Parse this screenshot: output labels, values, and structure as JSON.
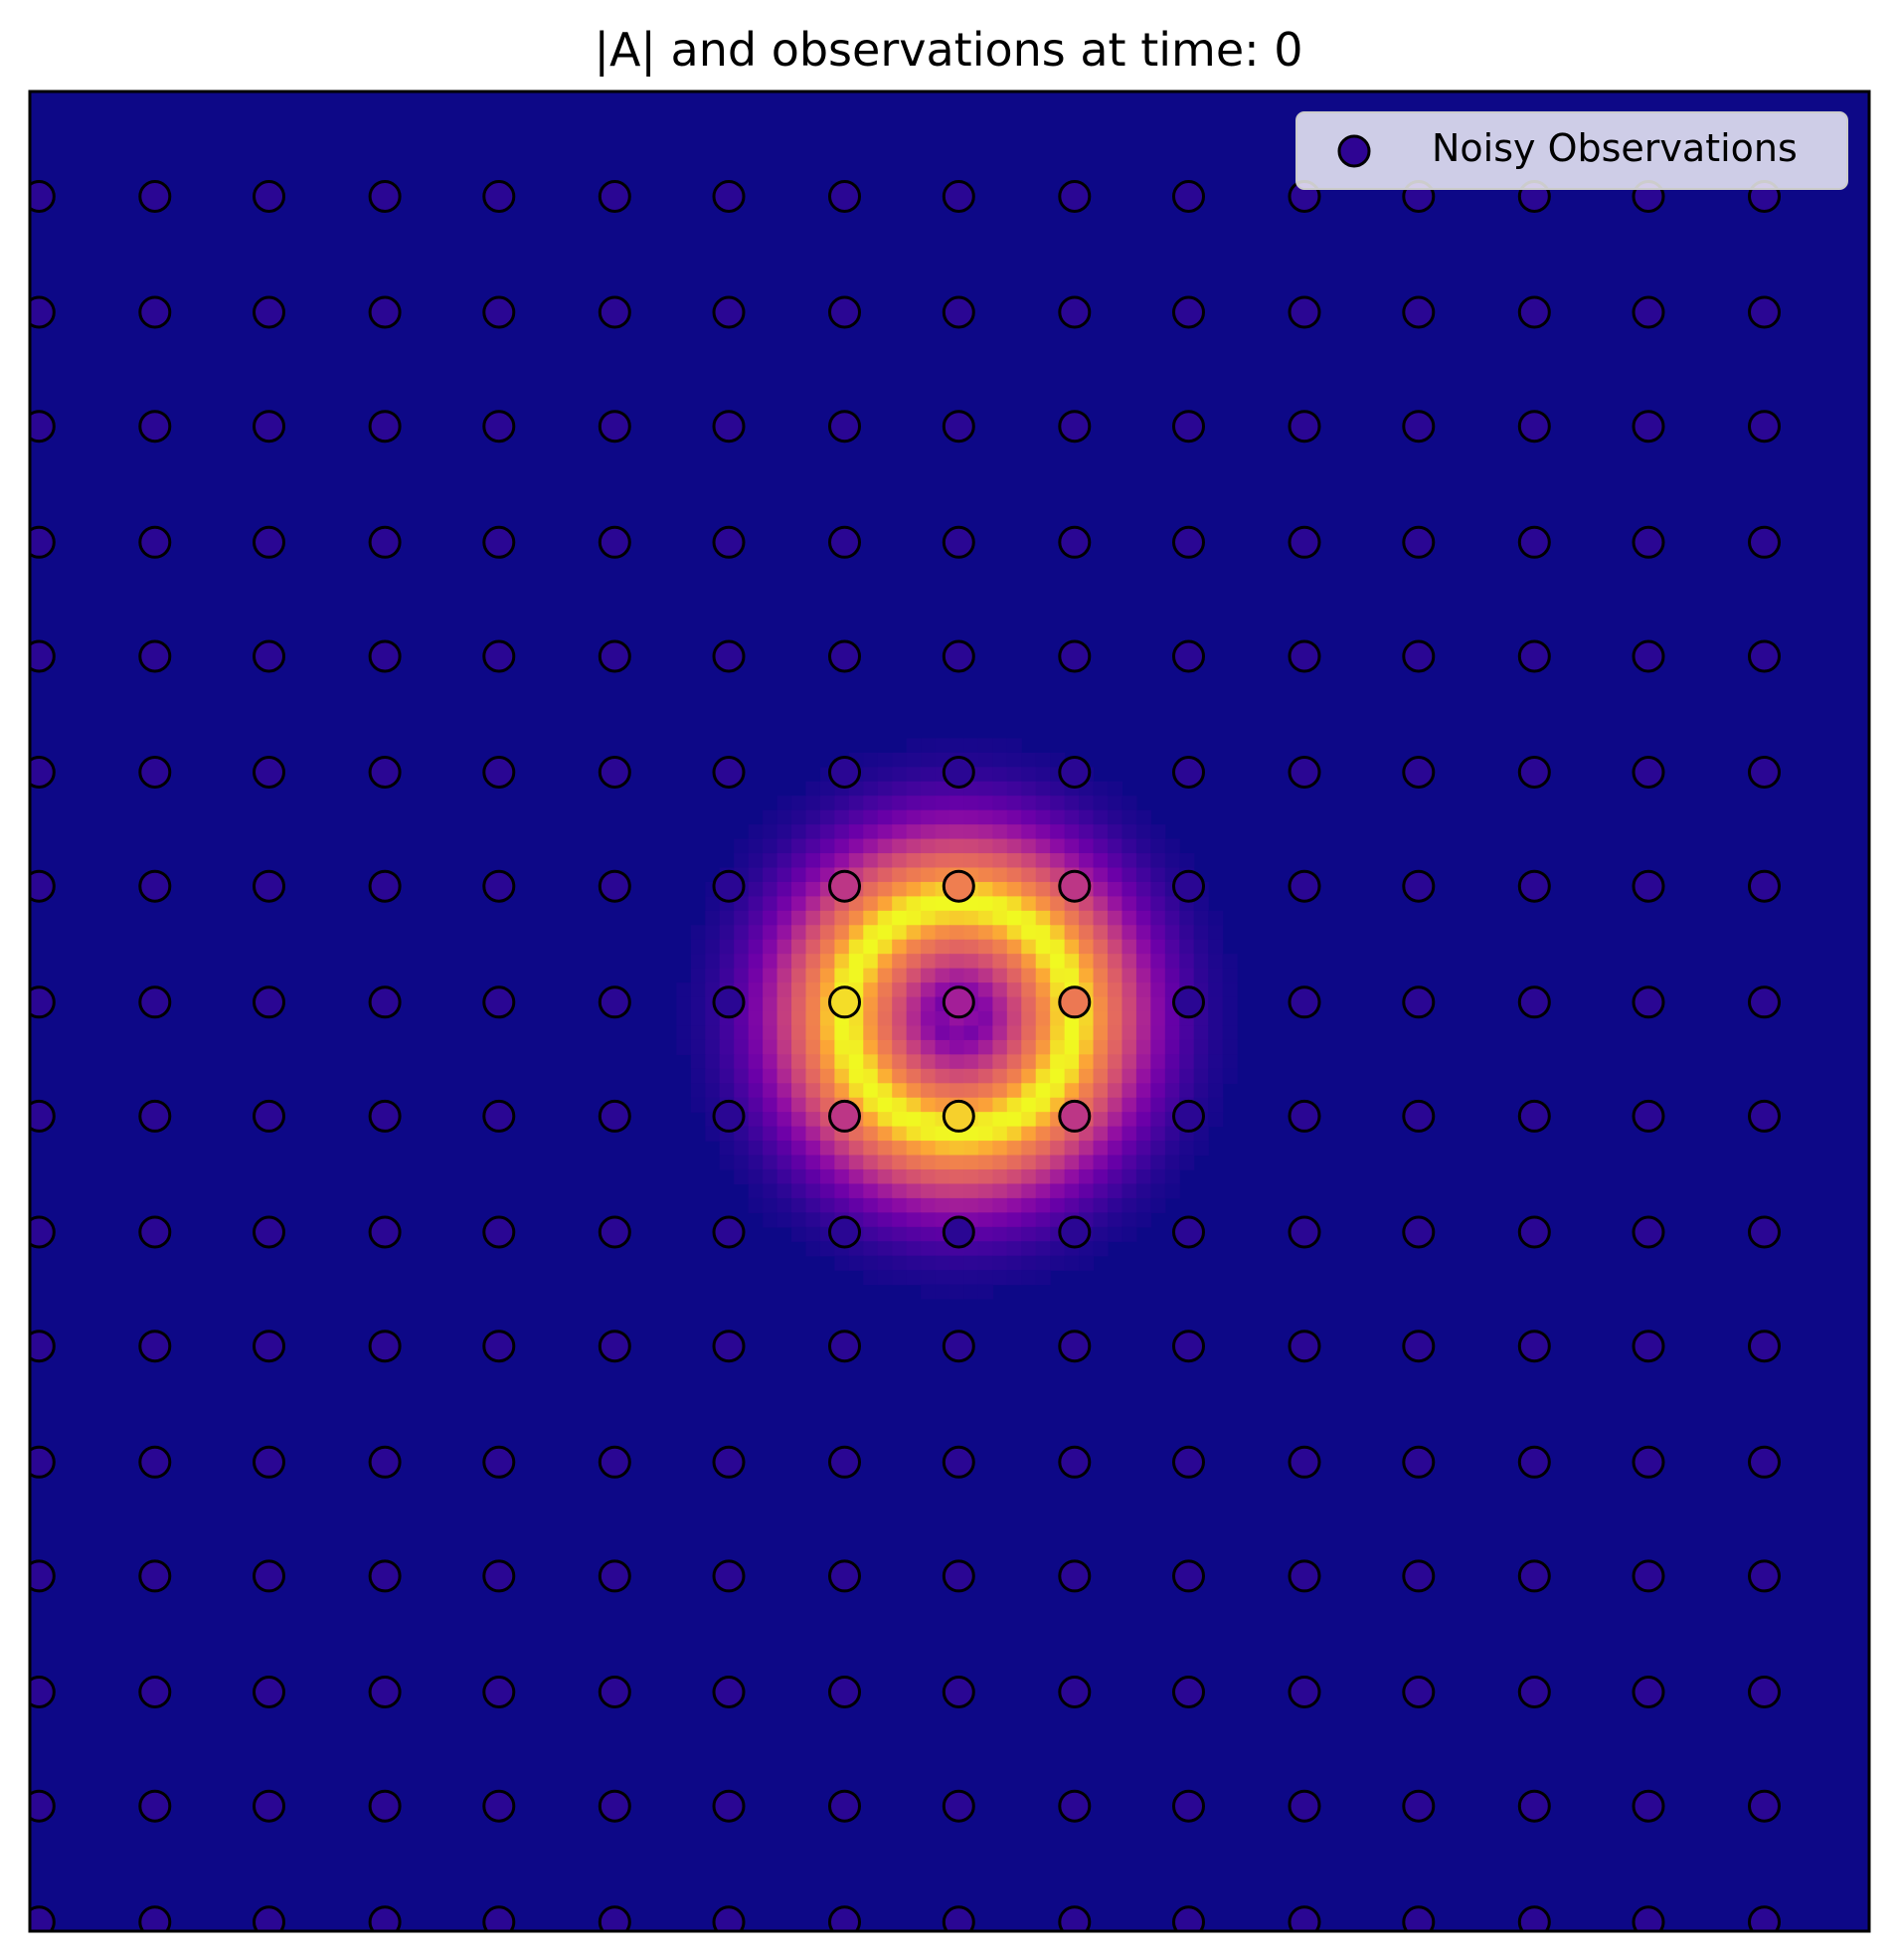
{
  "chart_data": {
    "type": "heatmap",
    "title": "|A| and observations at time: 0",
    "xlabel": "",
    "ylabel": "",
    "colormap": "plasma",
    "axes_ticks": "none",
    "grid": false,
    "legend": {
      "placement": "top-right",
      "entries": [
        "Noisy Observations"
      ]
    },
    "field": {
      "description_units": "normalized |A|",
      "domain": [
        0,
        1
      ],
      "ring_center": [
        0.505,
        0.497
      ],
      "ring_radius": 0.062,
      "ring_width": 0.045,
      "peak_value": 1.0,
      "center_value": 0.4,
      "background_value": 0.0
    },
    "observations": {
      "name": "Noisy Observations",
      "grid_x": [
        0.005,
        0.068,
        0.13,
        0.193,
        0.255,
        0.318,
        0.38,
        0.443,
        0.505,
        0.568,
        0.63,
        0.693,
        0.755,
        0.818,
        0.88,
        0.943
      ],
      "grid_y": [
        0.943,
        0.88,
        0.818,
        0.755,
        0.693,
        0.63,
        0.568,
        0.505,
        0.443,
        0.38,
        0.318,
        0.255,
        0.193,
        0.13,
        0.068,
        0.005
      ],
      "highlighted": [
        {
          "x": 0.443,
          "y": 0.568,
          "value": 0.55
        },
        {
          "x": 0.505,
          "y": 0.568,
          "value": 0.85
        },
        {
          "x": 0.568,
          "y": 0.568,
          "value": 0.55
        },
        {
          "x": 0.443,
          "y": 0.505,
          "value": 0.98
        },
        {
          "x": 0.505,
          "y": 0.505,
          "value": 0.45
        },
        {
          "x": 0.568,
          "y": 0.505,
          "value": 0.83
        },
        {
          "x": 0.443,
          "y": 0.443,
          "value": 0.55
        },
        {
          "x": 0.505,
          "y": 0.443,
          "value": 0.97
        },
        {
          "x": 0.568,
          "y": 0.443,
          "value": 0.55
        }
      ],
      "background_value": 0.07
    }
  }
}
